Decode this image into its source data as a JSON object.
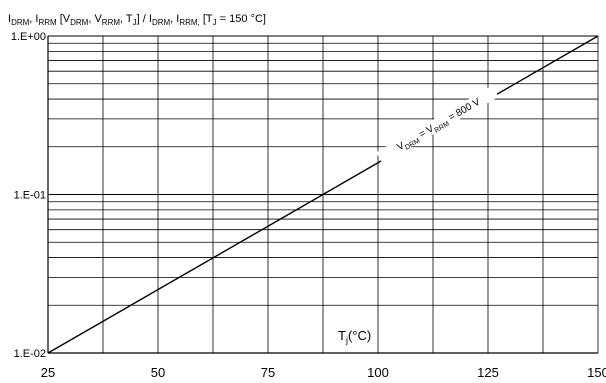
{
  "chart_data": {
    "type": "line",
    "title": {
      "parts": [
        {
          "t": "I",
          "sub": false
        },
        {
          "t": "DRM",
          "sub": true
        },
        {
          "t": ", I",
          "sub": false
        },
        {
          "t": "RRM",
          "sub": true
        },
        {
          "t": " [V",
          "sub": false
        },
        {
          "t": "DRM",
          "sub": true
        },
        {
          "t": ", V",
          "sub": false
        },
        {
          "t": "RRM",
          "sub": true
        },
        {
          "t": ", T",
          "sub": false
        },
        {
          "t": "J",
          "sub": true
        },
        {
          "t": "] / I",
          "sub": false
        },
        {
          "t": "DRM",
          "sub": true
        },
        {
          "t": ", I",
          "sub": false
        },
        {
          "t": "RRM,",
          "sub": true
        },
        {
          "t": " [T",
          "sub": false
        },
        {
          "t": "J",
          "sub": true
        },
        {
          "t": " = 150 °C]",
          "sub": false
        }
      ]
    },
    "xlabel": {
      "parts": [
        {
          "t": "T",
          "sub": false
        },
        {
          "t": "j",
          "sub": true
        },
        {
          "t": "(°C)",
          "sub": false
        }
      ]
    },
    "x_ticks": [
      25,
      50,
      75,
      100,
      125,
      150
    ],
    "x_minor_gridlines": [
      37.5,
      62.5,
      87.5,
      112.5,
      137.5
    ],
    "xlim": [
      25,
      150
    ],
    "y_scale": "log",
    "ylim": [
      0.01,
      1
    ],
    "y_ticks": [
      {
        "value": 0.01,
        "label": "1.E-02"
      },
      {
        "value": 0.1,
        "label": "1.E-01"
      },
      {
        "value": 1,
        "label": "1.E+00"
      }
    ],
    "grid": true,
    "series": [
      {
        "label_parts": [
          {
            "t": "V",
            "sub": false
          },
          {
            "t": "DRM",
            "sub": true
          },
          {
            "t": " = V",
            "sub": false
          },
          {
            "t": "RRM",
            "sub": true
          },
          {
            "t": " = 800 V",
            "sub": false
          }
        ],
        "x": [
          25,
          150
        ],
        "y": [
          0.01,
          1
        ],
        "color": "#000000"
      }
    ]
  }
}
